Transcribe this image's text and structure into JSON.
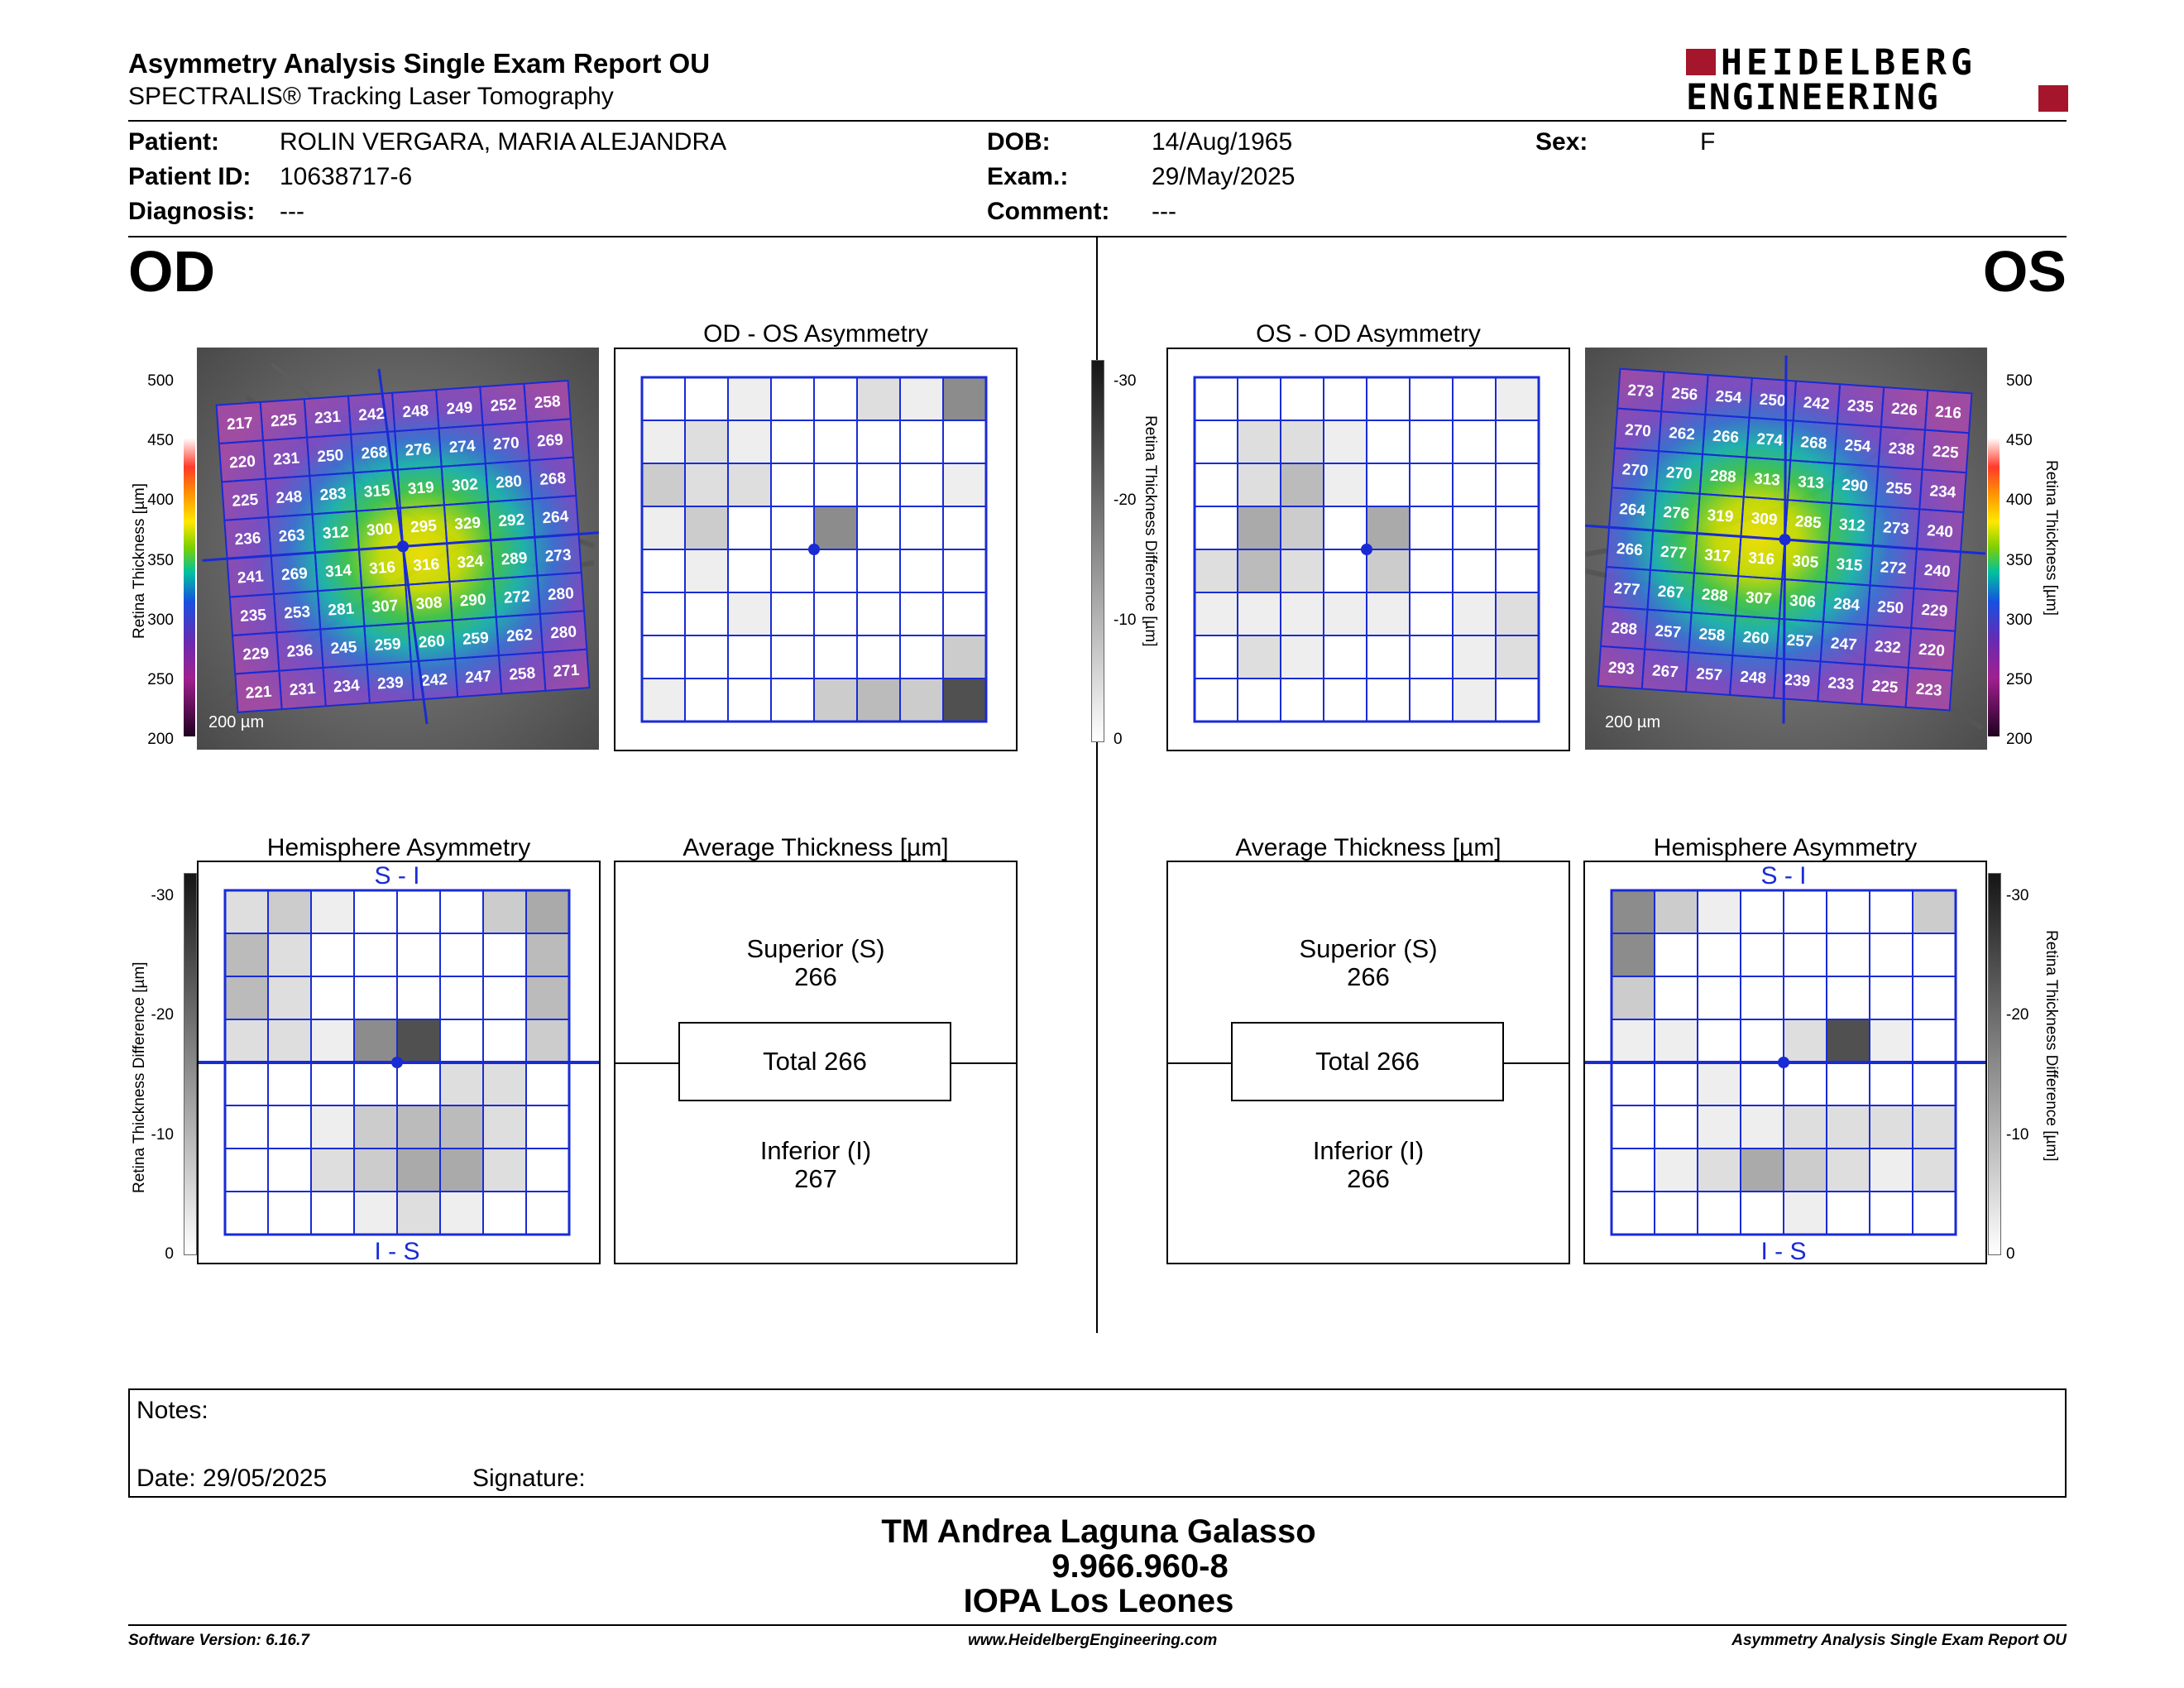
{
  "header": {
    "title": "Asymmetry Analysis Single Exam Report OU",
    "subtitle": "SPECTRALIS® Tracking Laser Tomography",
    "brand_line1": "HEIDELBERG",
    "brand_line2": "ENGINEERING",
    "brand_color": "#a5152b"
  },
  "patient": {
    "patient_label": "Patient:",
    "patient_value": "ROLIN VERGARA, MARIA ALEJANDRA",
    "id_label": "Patient ID:",
    "id_value": "10638717-6",
    "diagnosis_label": "Diagnosis:",
    "diagnosis_value": "---",
    "dob_label": "DOB:",
    "dob_value": "14/Aug/1965",
    "exam_label": "Exam.:",
    "exam_value": "29/May/2025",
    "comment_label": "Comment:",
    "comment_value": "---",
    "sex_label": "Sex:",
    "sex_value": "F"
  },
  "od": {
    "eye_label": "OD",
    "asym_title": "OD - OS Asymmetry",
    "hemi_title": "Hemisphere Asymmetry",
    "avg_title": "Average Thickness [µm]",
    "superior_label": "Superior (S)",
    "superior_value": "266",
    "total_label": "Total 266",
    "inferior_label": "Inferior (I)",
    "inferior_value": "267",
    "si_label": "S - I",
    "is_label": "I - S",
    "scale_bar": "200 µm",
    "grid": [
      [
        217,
        225,
        231,
        242,
        248,
        249,
        252,
        258
      ],
      [
        220,
        231,
        250,
        268,
        276,
        274,
        270,
        269
      ],
      [
        225,
        248,
        283,
        315,
        319,
        302,
        280,
        268
      ],
      [
        236,
        263,
        312,
        300,
        295,
        329,
        292,
        264
      ],
      [
        241,
        269,
        314,
        316,
        316,
        324,
        289,
        273
      ],
      [
        235,
        253,
        281,
        307,
        308,
        290,
        272,
        280
      ],
      [
        229,
        236,
        245,
        259,
        260,
        259,
        262,
        280
      ],
      [
        221,
        231,
        234,
        239,
        242,
        247,
        258,
        271
      ]
    ],
    "asym_levels": [
      [
        0,
        0,
        1,
        0,
        0,
        2,
        1,
        6
      ],
      [
        1,
        2,
        1,
        0,
        0,
        0,
        0,
        0
      ],
      [
        3,
        2,
        2,
        0,
        0,
        0,
        0,
        1
      ],
      [
        1,
        3,
        0,
        0,
        6,
        0,
        0,
        0
      ],
      [
        0,
        1,
        0,
        0,
        0,
        0,
        0,
        0
      ],
      [
        0,
        0,
        1,
        0,
        0,
        0,
        0,
        0
      ],
      [
        0,
        0,
        0,
        0,
        0,
        0,
        0,
        3
      ],
      [
        1,
        0,
        0,
        0,
        3,
        4,
        3,
        8
      ]
    ],
    "hemi_levels": [
      [
        2,
        3,
        1,
        0,
        0,
        0,
        3,
        5
      ],
      [
        4,
        2,
        0,
        0,
        0,
        0,
        0,
        4
      ],
      [
        4,
        2,
        0,
        0,
        0,
        0,
        0,
        4
      ],
      [
        2,
        2,
        1,
        6,
        8,
        0,
        0,
        3
      ],
      [
        0,
        0,
        0,
        0,
        0,
        2,
        2,
        0
      ],
      [
        0,
        0,
        1,
        3,
        4,
        4,
        2,
        0
      ],
      [
        0,
        0,
        2,
        3,
        5,
        5,
        2,
        0
      ],
      [
        0,
        0,
        0,
        1,
        2,
        1,
        0,
        0
      ]
    ]
  },
  "os": {
    "eye_label": "OS",
    "asym_title": "OS - OD Asymmetry",
    "hemi_title": "Hemisphere Asymmetry",
    "avg_title": "Average Thickness [µm]",
    "superior_label": "Superior (S)",
    "superior_value": "266",
    "total_label": "Total 266",
    "inferior_label": "Inferior (I)",
    "inferior_value": "266",
    "si_label": "S - I",
    "is_label": "I - S",
    "scale_bar": "200 µm",
    "grid": [
      [
        273,
        256,
        254,
        250,
        242,
        235,
        226,
        216
      ],
      [
        270,
        262,
        266,
        274,
        268,
        254,
        238,
        225
      ],
      [
        270,
        270,
        288,
        313,
        313,
        290,
        255,
        234
      ],
      [
        264,
        276,
        319,
        309,
        285,
        312,
        273,
        240
      ],
      [
        266,
        277,
        317,
        316,
        305,
        315,
        272,
        240
      ],
      [
        277,
        267,
        288,
        307,
        306,
        284,
        250,
        229
      ],
      [
        288,
        257,
        258,
        260,
        257,
        247,
        232,
        220
      ],
      [
        293,
        267,
        257,
        248,
        239,
        233,
        225,
        223
      ]
    ],
    "asym_levels": [
      [
        0,
        0,
        0,
        0,
        0,
        0,
        0,
        1
      ],
      [
        0,
        2,
        2,
        1,
        0,
        0,
        0,
        0
      ],
      [
        0,
        2,
        4,
        1,
        0,
        0,
        0,
        0
      ],
      [
        0,
        5,
        3,
        0,
        5,
        0,
        0,
        0
      ],
      [
        2,
        4,
        2,
        0,
        3,
        0,
        0,
        0
      ],
      [
        1,
        1,
        1,
        1,
        1,
        0,
        1,
        2
      ],
      [
        0,
        2,
        1,
        0,
        0,
        0,
        1,
        2
      ],
      [
        0,
        0,
        0,
        0,
        0,
        0,
        1,
        0
      ]
    ],
    "hemi_levels": [
      [
        6,
        3,
        1,
        0,
        0,
        0,
        0,
        3
      ],
      [
        6,
        0,
        0,
        0,
        0,
        0,
        0,
        0
      ],
      [
        3,
        0,
        0,
        0,
        0,
        0,
        0,
        0
      ],
      [
        1,
        1,
        0,
        0,
        2,
        8,
        1,
        0
      ],
      [
        0,
        0,
        1,
        0,
        0,
        0,
        0,
        0
      ],
      [
        0,
        0,
        1,
        1,
        2,
        2,
        2,
        2
      ],
      [
        0,
        1,
        2,
        5,
        3,
        2,
        1,
        2
      ],
      [
        0,
        0,
        0,
        0,
        1,
        0,
        0,
        0
      ]
    ]
  },
  "scales": {
    "thickness_ticks": [
      "500",
      "450",
      "400",
      "350",
      "300",
      "250",
      "200"
    ],
    "diff_ticks": [
      "-30",
      "-20",
      "-10",
      "0"
    ],
    "thickness_label": "Retina Thickness [µm]",
    "diff_label": "Retina Thickness Difference [µm]"
  },
  "notes": {
    "notes_label": "Notes:",
    "date_text": "Date: 29/05/2025",
    "signature_label": "Signature:"
  },
  "signatory": {
    "name": "TM Andrea Laguna Galasso",
    "id": "9.966.960-8",
    "place": "IOPA Los Leones"
  },
  "footer": {
    "software": "Software Version: 6.16.7",
    "website": "www.HeidelbergEngineering.com",
    "report_name": "Asymmetry Analysis Single Exam Report OU"
  }
}
